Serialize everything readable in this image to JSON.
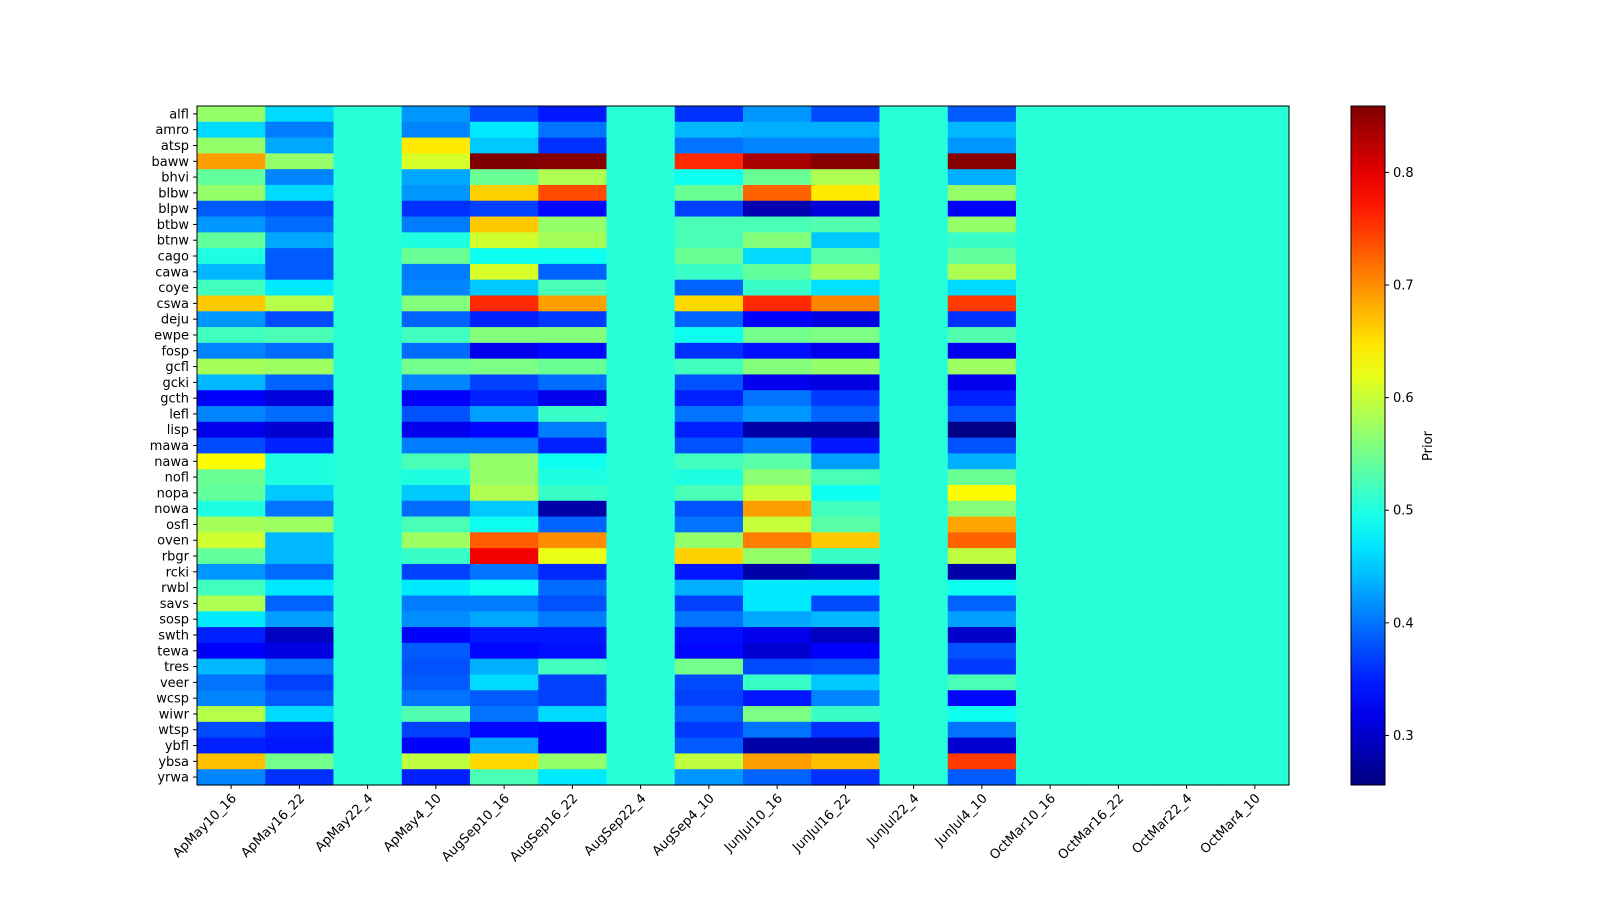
{
  "chart_data": {
    "type": "heatmap",
    "title": "",
    "xlabel": "",
    "ylabel": "",
    "colorbar_label": "Prior",
    "colormap": "jet",
    "vmin": 0.256,
    "vmax": 0.859,
    "colorbar_ticks": [
      "0.3",
      "0.4",
      "0.5",
      "0.6",
      "0.7",
      "0.8"
    ],
    "columns": [
      "ApMay10_16",
      "ApMay16_22",
      "ApMay22_4",
      "ApMay4_10",
      "AugSep10_16",
      "AugSep16_22",
      "AugSep22_4",
      "AugSep4_10",
      "JunJul10_16",
      "JunJul16_22",
      "JunJul22_4",
      "JunJul4_10",
      "OctMar10_16",
      "OctMar16_22",
      "OctMar22_4",
      "OctMar4_10"
    ],
    "rows": [
      "alfl",
      "amro",
      "atsp",
      "baww",
      "bhvi",
      "blbw",
      "blpw",
      "btbw",
      "btnw",
      "cago",
      "cawa",
      "coye",
      "cswa",
      "deju",
      "ewpe",
      "fosp",
      "gcfl",
      "gcki",
      "gcth",
      "lefl",
      "lisp",
      "mawa",
      "nawa",
      "nofl",
      "nopa",
      "nowa",
      "osfl",
      "oven",
      "rbgr",
      "rcki",
      "rwbl",
      "savs",
      "sosp",
      "swth",
      "tewa",
      "tres",
      "veer",
      "wcsp",
      "wiwr",
      "wtsp",
      "ybfl",
      "ybsa",
      "yrwa"
    ],
    "values": [
      [
        0.57,
        0.46,
        0.505,
        0.42,
        0.375,
        0.345,
        0.505,
        0.36,
        0.42,
        0.375,
        0.505,
        0.385,
        0.505,
        0.505,
        0.505,
        0.505
      ],
      [
        0.46,
        0.405,
        0.505,
        0.41,
        0.47,
        0.4,
        0.505,
        0.44,
        0.435,
        0.435,
        0.505,
        0.44,
        0.505,
        0.505,
        0.505,
        0.505
      ],
      [
        0.57,
        0.43,
        0.505,
        0.645,
        0.45,
        0.36,
        0.505,
        0.4,
        0.41,
        0.41,
        0.505,
        0.42,
        0.505,
        0.505,
        0.505,
        0.505
      ],
      [
        0.69,
        0.57,
        0.505,
        0.61,
        0.859,
        0.855,
        0.505,
        0.76,
        0.835,
        0.855,
        0.505,
        0.855,
        0.505,
        0.505,
        0.505,
        0.505
      ],
      [
        0.54,
        0.41,
        0.505,
        0.43,
        0.545,
        0.585,
        0.505,
        0.49,
        0.545,
        0.585,
        0.505,
        0.435,
        0.505,
        0.505,
        0.505,
        0.505
      ],
      [
        0.57,
        0.46,
        0.505,
        0.42,
        0.66,
        0.74,
        0.505,
        0.545,
        0.725,
        0.645,
        0.505,
        0.57,
        0.505,
        0.505,
        0.505,
        0.505
      ],
      [
        0.385,
        0.375,
        0.505,
        0.36,
        0.37,
        0.335,
        0.505,
        0.37,
        0.285,
        0.31,
        0.505,
        0.33,
        0.505,
        0.505,
        0.505,
        0.505
      ],
      [
        0.42,
        0.395,
        0.505,
        0.405,
        0.665,
        0.57,
        0.505,
        0.525,
        0.525,
        0.53,
        0.505,
        0.57,
        0.505,
        0.505,
        0.505,
        0.505
      ],
      [
        0.54,
        0.43,
        0.505,
        0.5,
        0.605,
        0.58,
        0.505,
        0.525,
        0.56,
        0.45,
        0.505,
        0.515,
        0.505,
        0.505,
        0.505,
        0.505
      ],
      [
        0.5,
        0.385,
        0.505,
        0.545,
        0.49,
        0.49,
        0.505,
        0.545,
        0.46,
        0.535,
        0.505,
        0.54,
        0.505,
        0.505,
        0.505,
        0.505
      ],
      [
        0.44,
        0.385,
        0.505,
        0.405,
        0.61,
        0.39,
        0.505,
        0.515,
        0.54,
        0.58,
        0.505,
        0.585,
        0.505,
        0.505,
        0.505,
        0.505
      ],
      [
        0.52,
        0.47,
        0.505,
        0.41,
        0.45,
        0.525,
        0.505,
        0.39,
        0.515,
        0.465,
        0.505,
        0.46,
        0.505,
        0.505,
        0.505,
        0.505
      ],
      [
        0.665,
        0.59,
        0.505,
        0.56,
        0.76,
        0.69,
        0.505,
        0.655,
        0.76,
        0.705,
        0.505,
        0.75,
        0.505,
        0.505,
        0.505,
        0.505
      ],
      [
        0.42,
        0.375,
        0.505,
        0.39,
        0.35,
        0.365,
        0.505,
        0.39,
        0.33,
        0.315,
        0.505,
        0.36,
        0.505,
        0.505,
        0.505,
        0.505
      ],
      [
        0.52,
        0.525,
        0.505,
        0.52,
        0.56,
        0.56,
        0.505,
        0.49,
        0.55,
        0.555,
        0.505,
        0.53,
        0.505,
        0.505,
        0.505,
        0.505
      ],
      [
        0.41,
        0.395,
        0.505,
        0.395,
        0.32,
        0.335,
        0.505,
        0.36,
        0.34,
        0.32,
        0.505,
        0.32,
        0.505,
        0.505,
        0.505,
        0.505
      ],
      [
        0.58,
        0.575,
        0.505,
        0.55,
        0.555,
        0.545,
        0.505,
        0.52,
        0.56,
        0.57,
        0.505,
        0.575,
        0.505,
        0.505,
        0.505,
        0.505
      ],
      [
        0.44,
        0.39,
        0.505,
        0.41,
        0.37,
        0.395,
        0.505,
        0.38,
        0.32,
        0.315,
        0.505,
        0.32,
        0.505,
        0.505,
        0.505,
        0.505
      ],
      [
        0.33,
        0.31,
        0.505,
        0.33,
        0.35,
        0.32,
        0.505,
        0.35,
        0.4,
        0.365,
        0.505,
        0.35,
        0.505,
        0.505,
        0.505,
        0.505
      ],
      [
        0.41,
        0.395,
        0.505,
        0.38,
        0.425,
        0.515,
        0.505,
        0.4,
        0.42,
        0.39,
        0.505,
        0.38,
        0.505,
        0.505,
        0.505,
        0.505
      ],
      [
        0.32,
        0.305,
        0.505,
        0.32,
        0.335,
        0.405,
        0.505,
        0.35,
        0.28,
        0.28,
        0.505,
        0.26,
        0.505,
        0.505,
        0.505,
        0.505
      ],
      [
        0.375,
        0.35,
        0.505,
        0.405,
        0.405,
        0.35,
        0.505,
        0.38,
        0.405,
        0.345,
        0.505,
        0.38,
        0.505,
        0.505,
        0.505,
        0.505
      ],
      [
        0.635,
        0.5,
        0.505,
        0.525,
        0.57,
        0.49,
        0.505,
        0.52,
        0.535,
        0.425,
        0.505,
        0.435,
        0.505,
        0.505,
        0.505,
        0.505
      ],
      [
        0.545,
        0.5,
        0.505,
        0.5,
        0.57,
        0.5,
        0.505,
        0.5,
        0.565,
        0.525,
        0.505,
        0.545,
        0.505,
        0.505,
        0.505,
        0.505
      ],
      [
        0.54,
        0.45,
        0.505,
        0.45,
        0.585,
        0.515,
        0.505,
        0.525,
        0.6,
        0.49,
        0.505,
        0.635,
        0.505,
        0.505,
        0.505,
        0.505
      ],
      [
        0.5,
        0.4,
        0.505,
        0.395,
        0.45,
        0.28,
        0.505,
        0.38,
        0.69,
        0.52,
        0.505,
        0.56,
        0.505,
        0.505,
        0.505,
        0.505
      ],
      [
        0.58,
        0.575,
        0.505,
        0.525,
        0.49,
        0.39,
        0.505,
        0.4,
        0.6,
        0.535,
        0.505,
        0.685,
        0.505,
        0.505,
        0.505,
        0.505
      ],
      [
        0.605,
        0.44,
        0.505,
        0.575,
        0.73,
        0.7,
        0.505,
        0.57,
        0.71,
        0.665,
        0.505,
        0.725,
        0.505,
        0.505,
        0.505,
        0.505
      ],
      [
        0.54,
        0.44,
        0.505,
        0.515,
        0.79,
        0.62,
        0.505,
        0.66,
        0.57,
        0.515,
        0.505,
        0.595,
        0.505,
        0.505,
        0.505,
        0.505
      ],
      [
        0.42,
        0.395,
        0.505,
        0.37,
        0.4,
        0.355,
        0.505,
        0.345,
        0.28,
        0.29,
        0.505,
        0.28,
        0.505,
        0.505,
        0.505,
        0.505
      ],
      [
        0.52,
        0.47,
        0.505,
        0.47,
        0.49,
        0.395,
        0.505,
        0.435,
        0.47,
        0.47,
        0.505,
        0.49,
        0.505,
        0.505,
        0.505,
        0.505
      ],
      [
        0.585,
        0.39,
        0.505,
        0.405,
        0.405,
        0.38,
        0.505,
        0.37,
        0.47,
        0.375,
        0.505,
        0.39,
        0.505,
        0.505,
        0.505,
        0.505
      ],
      [
        0.47,
        0.425,
        0.505,
        0.415,
        0.43,
        0.405,
        0.505,
        0.4,
        0.43,
        0.44,
        0.505,
        0.425,
        0.505,
        0.505,
        0.505,
        0.505
      ],
      [
        0.35,
        0.295,
        0.505,
        0.33,
        0.345,
        0.345,
        0.505,
        0.34,
        0.32,
        0.295,
        0.505,
        0.3,
        0.505,
        0.505,
        0.505,
        0.505
      ],
      [
        0.33,
        0.315,
        0.505,
        0.385,
        0.335,
        0.34,
        0.505,
        0.335,
        0.305,
        0.33,
        0.505,
        0.38,
        0.505,
        0.505,
        0.505,
        0.505
      ],
      [
        0.44,
        0.4,
        0.505,
        0.38,
        0.435,
        0.52,
        0.505,
        0.55,
        0.375,
        0.38,
        0.505,
        0.365,
        0.505,
        0.505,
        0.505,
        0.505
      ],
      [
        0.4,
        0.37,
        0.505,
        0.385,
        0.46,
        0.37,
        0.505,
        0.375,
        0.515,
        0.45,
        0.505,
        0.525,
        0.505,
        0.505,
        0.505,
        0.505
      ],
      [
        0.41,
        0.385,
        0.505,
        0.4,
        0.385,
        0.37,
        0.505,
        0.37,
        0.345,
        0.41,
        0.505,
        0.335,
        0.505,
        0.505,
        0.505,
        0.505
      ],
      [
        0.59,
        0.46,
        0.505,
        0.53,
        0.4,
        0.46,
        0.505,
        0.39,
        0.555,
        0.515,
        0.505,
        0.49,
        0.505,
        0.505,
        0.505,
        0.505
      ],
      [
        0.375,
        0.35,
        0.505,
        0.37,
        0.335,
        0.33,
        0.505,
        0.365,
        0.4,
        0.36,
        0.505,
        0.4,
        0.505,
        0.505,
        0.505,
        0.505
      ],
      [
        0.35,
        0.345,
        0.505,
        0.33,
        0.43,
        0.33,
        0.505,
        0.385,
        0.28,
        0.28,
        0.505,
        0.305,
        0.505,
        0.505,
        0.505,
        0.505
      ],
      [
        0.67,
        0.55,
        0.505,
        0.595,
        0.655,
        0.57,
        0.505,
        0.595,
        0.69,
        0.67,
        0.505,
        0.75,
        0.505,
        0.505,
        0.505,
        0.505
      ],
      [
        0.41,
        0.36,
        0.505,
        0.35,
        0.525,
        0.47,
        0.505,
        0.42,
        0.39,
        0.36,
        0.505,
        0.385,
        0.505,
        0.505,
        0.505,
        0.505
      ]
    ]
  }
}
